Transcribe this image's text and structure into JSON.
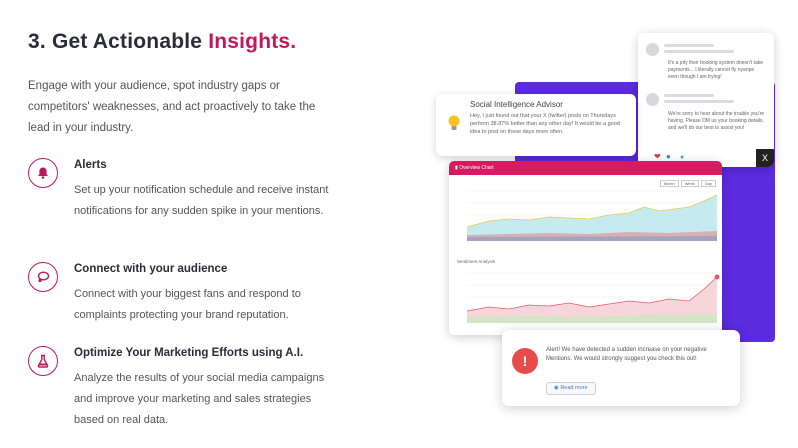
{
  "heading": {
    "prefix": "3. Get Actionable ",
    "accent": "Insights."
  },
  "intro": "Engage with your audience, spot industry gaps or competitors' weaknesses, and act proactively to take the lead in your industry.",
  "features": [
    {
      "title": "Alerts",
      "description": "Set up your notification schedule and receive instant notifications for any sudden spike in your mentions.",
      "icon": "bell-icon"
    },
    {
      "title": "Connect with your audience",
      "description": "Connect with your biggest fans and respond to complaints protecting your brand reputation.",
      "icon": "chat-icon"
    },
    {
      "title": "Optimize Your Marketing Efforts using A.I.",
      "description": "Analyze the results of your social media campaigns and improve your marketing and sales strategies based on real data.",
      "icon": "flask-icon"
    }
  ],
  "advisor": {
    "title": "Social Intelligence Advisor",
    "text": "Hey, I just found out that your X (twitter) posts on Thursdays perform 38.87% better than any other day! It would be a good idea to post on these days more often."
  },
  "social": {
    "comment1": "It's a pity their booking system doesn't take payments... I literally cannot fly nyanpe even though I am trying!",
    "comment2": "We're sorry to hear about the trouble you're having. Please DM us your booking details, and we'll do our best to assist you!",
    "badge": "X"
  },
  "overview": {
    "title": "Overview Chart",
    "tabs": [
      "Month",
      "Week",
      "Day"
    ],
    "sentiment_label": "Sentiment Analysis"
  },
  "alert": {
    "text": "Alert! We have detected a sudden increase on your negative Mentions. We would strongly suggest you check this out!",
    "button": "Read more"
  },
  "colors": {
    "accent": "#c2185b",
    "purple": "#5b2be0",
    "chart_header": "#d81b60",
    "alert_red": "#e74c4c"
  }
}
